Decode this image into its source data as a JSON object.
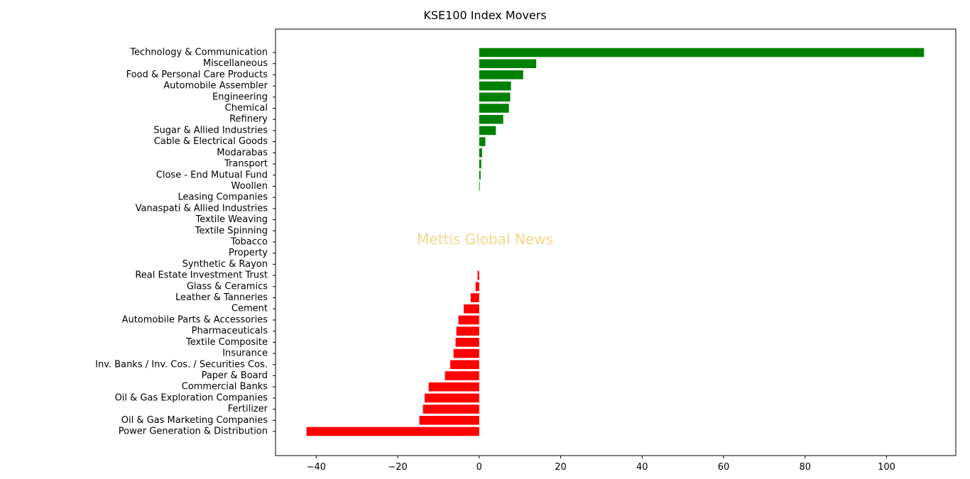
{
  "chart_data": {
    "type": "bar",
    "orientation": "horizontal",
    "title": "KSE100 Index Movers",
    "watermark": "Mettis Global News",
    "xlabel": "",
    "ylabel": "",
    "xlim": [
      -50,
      117
    ],
    "xticks": [
      -40,
      -20,
      0,
      20,
      40,
      60,
      80,
      100
    ],
    "xtick_labels": [
      "−40",
      "−20",
      "0",
      "20",
      "40",
      "60",
      "80",
      "100"
    ],
    "grid": false,
    "legend": "none",
    "colors": {
      "positive": "#008000",
      "negative": "#ff0000"
    },
    "categories": [
      "Technology & Communication",
      "Miscellaneous",
      "Food & Personal Care Products",
      "Automobile Assembler",
      "Engineering",
      "Chemical",
      "Refinery",
      "Sugar & Allied Industries",
      "Cable & Electrical Goods",
      "Modarabas",
      "Transport",
      "Close - End Mutual Fund",
      "Woollen",
      "Leasing Companies",
      "Vanaspati & Allied Industries",
      "Textile Weaving",
      "Textile Spinning",
      "Tobacco",
      "Property",
      "Synthetic & Rayon",
      "Real Estate Investment Trust",
      "Glass & Ceramics",
      "Leather & Tanneries",
      "Cement",
      "Automobile Parts & Accessories",
      "Pharmaceuticals",
      "Textile Composite",
      "Insurance",
      "Inv. Banks / Inv. Cos. / Securities Cos.",
      "Paper & Board",
      "Commercial Banks",
      "Oil & Gas Exploration Companies",
      "Fertilizer",
      "Oil & Gas Marketing Companies",
      "Power Generation & Distribution"
    ],
    "values": [
      109.2,
      14.0,
      10.8,
      7.8,
      7.6,
      7.3,
      5.9,
      4.1,
      1.5,
      0.7,
      0.5,
      0.35,
      0.15,
      0,
      0,
      0,
      0,
      0,
      0,
      0,
      -0.4,
      -0.9,
      -2.1,
      -3.8,
      -5.1,
      -5.6,
      -5.8,
      -6.3,
      -7.1,
      -8.4,
      -12.4,
      -13.4,
      -13.8,
      -14.7,
      -42.4
    ]
  }
}
